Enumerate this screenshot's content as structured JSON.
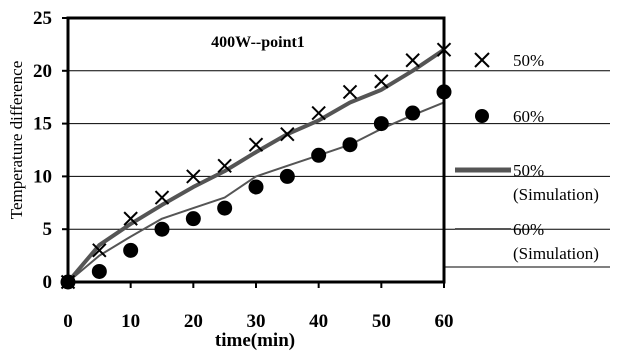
{
  "chart_data": {
    "type": "line",
    "title": "400W--point1",
    "xlabel": "time(min)",
    "ylabel": "Temperature difference",
    "xlim": [
      0,
      60
    ],
    "ylim": [
      0,
      25
    ],
    "x_ticks": [
      0,
      10,
      20,
      30,
      40,
      50,
      60
    ],
    "y_ticks": [
      0,
      5,
      10,
      15,
      20,
      25
    ],
    "grid": "horizontal",
    "legend_position": "right",
    "series": [
      {
        "name": "50%",
        "kind": "scatter",
        "marker": "x",
        "color": "#000000",
        "x": [
          0,
          5,
          10,
          15,
          20,
          25,
          30,
          35,
          40,
          45,
          50,
          55,
          60
        ],
        "y": [
          0,
          3,
          6,
          8,
          10,
          11,
          13,
          14,
          16,
          18,
          19,
          21,
          22
        ]
      },
      {
        "name": "60%",
        "kind": "scatter",
        "marker": "circle",
        "color": "#000000",
        "x": [
          0,
          5,
          10,
          15,
          20,
          25,
          30,
          35,
          40,
          45,
          50,
          55,
          60
        ],
        "y": [
          0,
          1,
          3,
          5,
          6,
          7,
          9,
          10,
          12,
          13,
          15,
          16,
          18
        ]
      },
      {
        "name": "50%\n(Simulation)",
        "kind": "line",
        "line_style": "thick",
        "color": "#555555",
        "x": [
          0,
          5,
          10,
          15,
          20,
          25,
          30,
          35,
          40,
          45,
          50,
          55,
          60
        ],
        "y": [
          0,
          3.5,
          5.5,
          7.3,
          9,
          10.5,
          12.3,
          14,
          15.3,
          17,
          18.2,
          20,
          22
        ]
      },
      {
        "name": "60%\n(Simulation)",
        "kind": "line",
        "line_style": "thin",
        "color": "#555555",
        "x": [
          0,
          5,
          10,
          15,
          20,
          25,
          30,
          35,
          40,
          45,
          50,
          55,
          60
        ],
        "y": [
          0,
          2.5,
          4.3,
          6,
          7,
          8,
          10,
          11,
          12,
          13,
          14.5,
          15.8,
          17
        ]
      }
    ]
  },
  "legend": [
    {
      "label_line1": "50%",
      "label_line2": ""
    },
    {
      "label_line1": "60%",
      "label_line2": ""
    },
    {
      "label_line1": "50%",
      "label_line2": "(Simulation)"
    },
    {
      "label_line1": "60%",
      "label_line2": "(Simulation)"
    }
  ]
}
